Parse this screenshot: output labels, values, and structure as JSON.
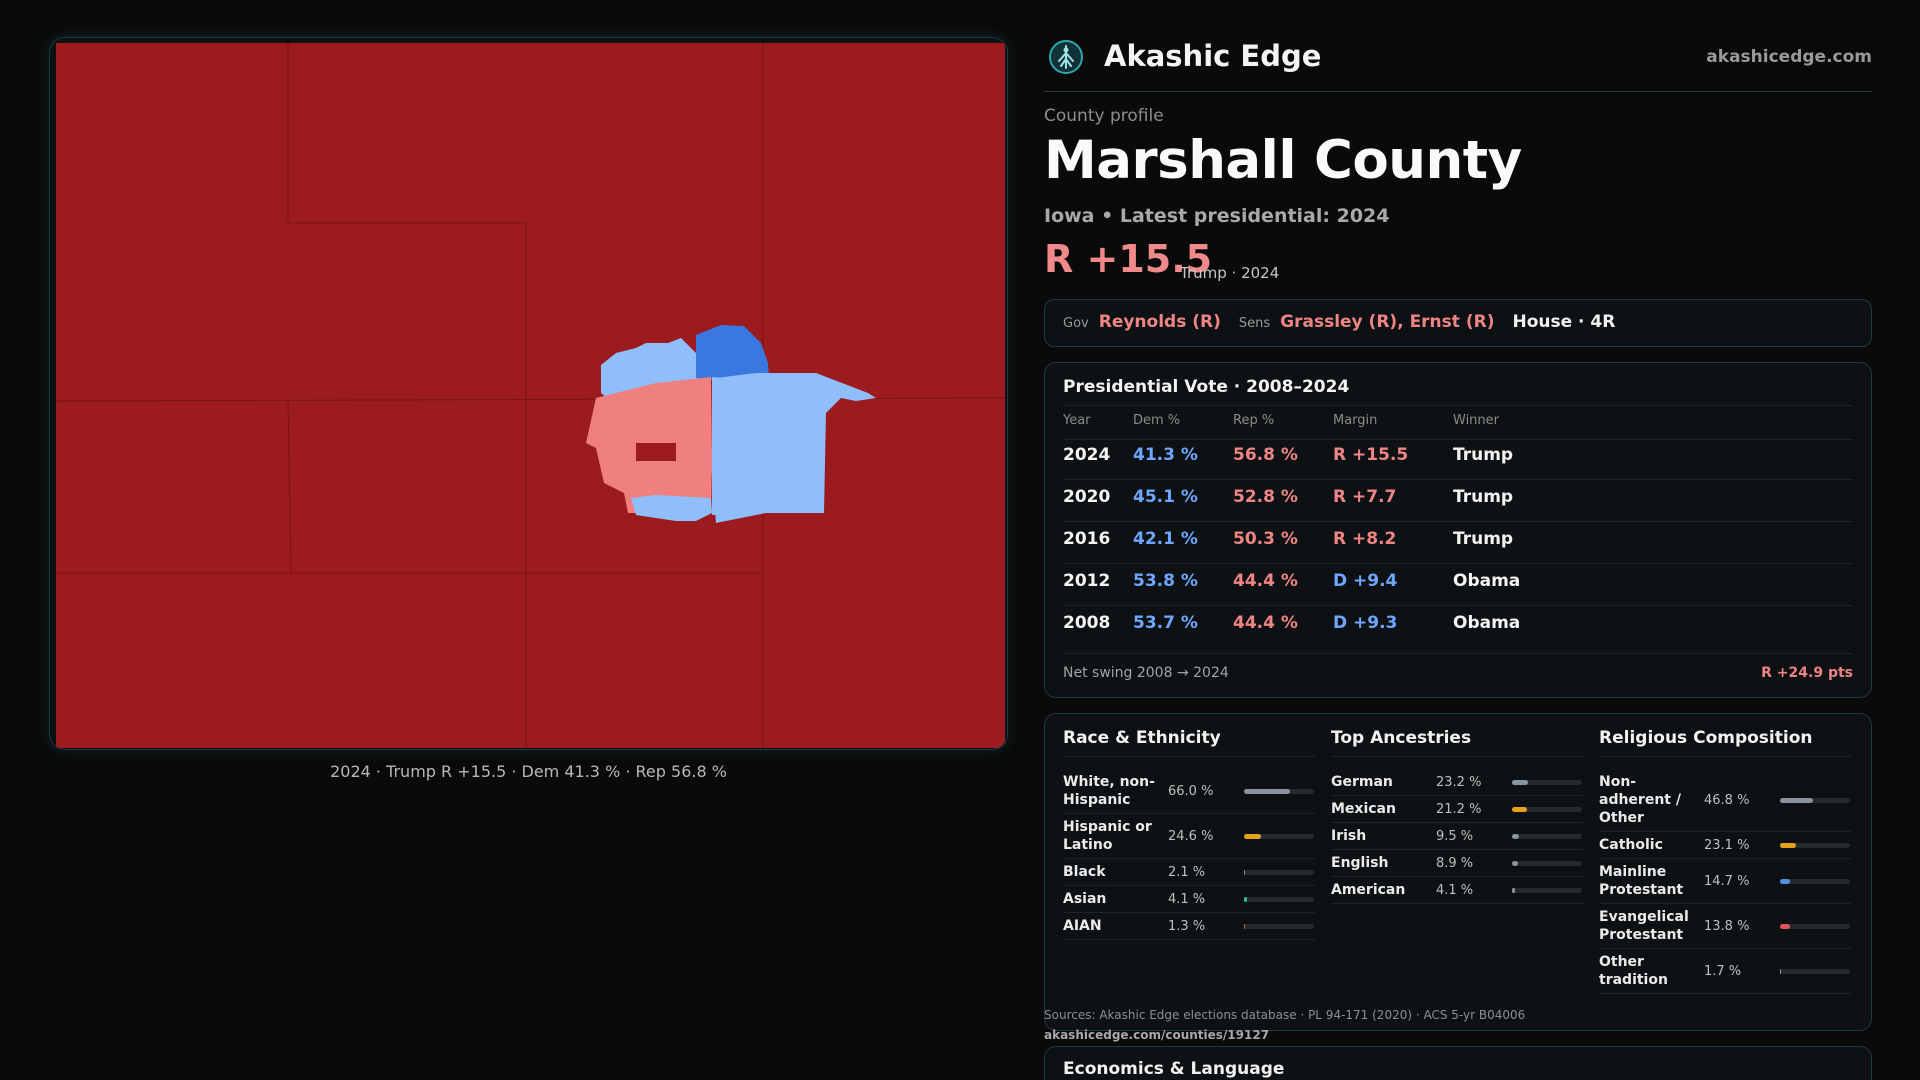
{
  "header": {
    "brand": "Akashic Edge",
    "site": "akashicedge.com",
    "logo_icon": "tree-logo-icon"
  },
  "profile": {
    "kicker": "County profile",
    "title": "Marshall County",
    "subtitle": "Iowa • Latest presidential: 2024",
    "margin": "R +15.5",
    "margin_note": "Trump · 2024"
  },
  "officials": {
    "gov_label": "Gov",
    "gov": "Reynolds (R)",
    "sens_label": "Sens",
    "sens": "Grassley (R), Ernst (R)",
    "house": "House · 4R"
  },
  "map": {
    "caption": "2024 · Trump R +15.5 · Dem 41.3 % · Rep 56.8 %",
    "colors": {
      "strong_rep": "#9b1b1e",
      "lean_rep": "#f08080",
      "lean_dem": "#8fbefa",
      "dem": "#3a78e0"
    }
  },
  "presidential": {
    "title": "Presidential Vote · 2008–2024",
    "columns": [
      "Year",
      "Dem %",
      "Rep %",
      "Margin",
      "Winner"
    ],
    "rows": [
      {
        "year": "2024",
        "dem": "41.3 %",
        "rep": "56.8 %",
        "margin": "R +15.5",
        "party": "R",
        "winner": "Trump"
      },
      {
        "year": "2020",
        "dem": "45.1 %",
        "rep": "52.8 %",
        "margin": "R +7.7",
        "party": "R",
        "winner": "Trump"
      },
      {
        "year": "2016",
        "dem": "42.1 %",
        "rep": "50.3 %",
        "margin": "R +8.2",
        "party": "R",
        "winner": "Trump"
      },
      {
        "year": "2012",
        "dem": "53.8 %",
        "rep": "44.4 %",
        "margin": "D +9.4",
        "party": "D",
        "winner": "Obama"
      },
      {
        "year": "2008",
        "dem": "53.7 %",
        "rep": "44.4 %",
        "margin": "D +9.3",
        "party": "D",
        "winner": "Obama"
      }
    ],
    "swing_label": "Net swing 2008 → 2024",
    "swing_value": "R +24.9 pts"
  },
  "demographics": {
    "race": {
      "title": "Race & Ethnicity",
      "items": [
        {
          "label": "White, non-Hispanic",
          "value": "66.0 %",
          "pct": 66.0,
          "color": "#8a93a0"
        },
        {
          "label": "Hispanic or Latino",
          "value": "24.6 %",
          "pct": 24.6,
          "color": "#e3a21a"
        },
        {
          "label": "Black",
          "value": "2.1 %",
          "pct": 2.1,
          "color": "#8a93a0"
        },
        {
          "label": "Asian",
          "value": "4.1 %",
          "pct": 4.1,
          "color": "#2fbf8f"
        },
        {
          "label": "AIAN",
          "value": "1.3 %",
          "pct": 1.3,
          "color": "#d2553f"
        }
      ]
    },
    "ancestry": {
      "title": "Top Ancestries",
      "items": [
        {
          "label": "German",
          "value": "23.2 %",
          "pct": 23.2,
          "color": "#8a93a0"
        },
        {
          "label": "Mexican",
          "value": "21.2 %",
          "pct": 21.2,
          "color": "#e3a21a"
        },
        {
          "label": "Irish",
          "value": "9.5 %",
          "pct": 9.5,
          "color": "#8a93a0"
        },
        {
          "label": "English",
          "value": "8.9 %",
          "pct": 8.9,
          "color": "#8a93a0"
        },
        {
          "label": "American",
          "value": "4.1 %",
          "pct": 4.1,
          "color": "#8a93a0"
        }
      ]
    },
    "religion": {
      "title": "Religious Composition",
      "items": [
        {
          "label": "Non-adherent / Other",
          "value": "46.8 %",
          "pct": 46.8,
          "color": "#8a93a0"
        },
        {
          "label": "Catholic",
          "value": "23.1 %",
          "pct": 23.1,
          "color": "#e3a21a"
        },
        {
          "label": "Mainline Protestant",
          "value": "14.7 %",
          "pct": 14.7,
          "color": "#4f8fe8"
        },
        {
          "label": "Evangelical Protestant",
          "value": "13.8 %",
          "pct": 13.8,
          "color": "#e0545a"
        },
        {
          "label": "Other tradition",
          "value": "1.7 %",
          "pct": 1.7,
          "color": "#8a93a0"
        }
      ]
    }
  },
  "sources": {
    "text": "Sources: Akashic Edge elections database · PL 94-171 (2020) · ACS 5-yr B04006",
    "url": "akashicedge.com/counties/19127"
  },
  "economics": {
    "title": "Economics & Language"
  }
}
